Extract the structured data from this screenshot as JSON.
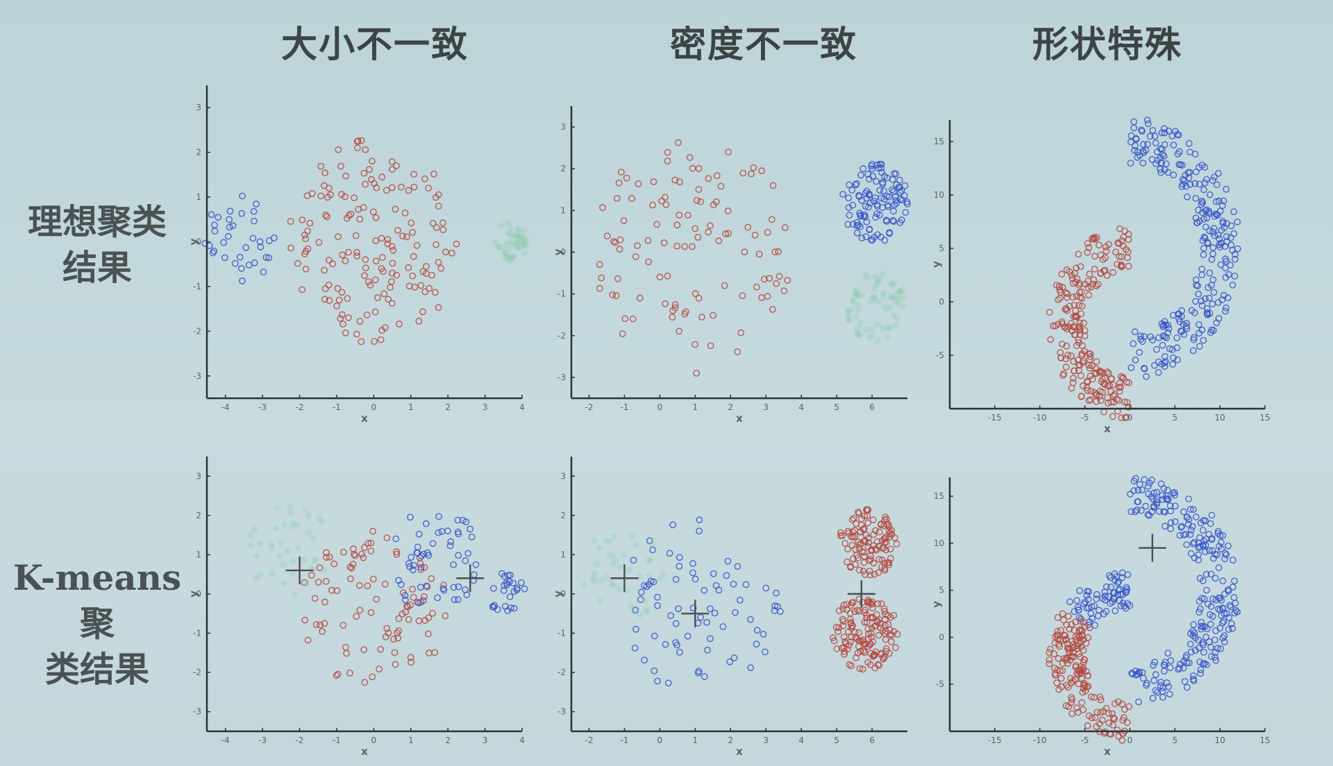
{
  "titles": {
    "col1": "大小不一致",
    "col2": "密度不一致",
    "col3": "形状特殊",
    "row1_line1": "理想聚类",
    "row1_line2": "结果",
    "row2_line1": "K-means聚",
    "row2_line2": "类结果"
  },
  "colors": {
    "red": "#b4463e",
    "blue": "#3552c8",
    "green": "#7cc9a4",
    "axis": "#2c3234"
  },
  "chart_data": [
    {
      "id": "size-ideal",
      "type": "scatter",
      "xlabel": "x",
      "ylabel": "y",
      "xlim": [
        -4.5,
        4
      ],
      "ylim": [
        -3.5,
        3.5
      ],
      "xticks": [
        -4,
        -3,
        -2,
        -1,
        0,
        1,
        2,
        3,
        4
      ],
      "yticks": [
        -3,
        -2,
        -1,
        0,
        1,
        2,
        3
      ],
      "series": [
        {
          "color": "red",
          "shape": "disk",
          "center": [
            0,
            0
          ],
          "radius": 2.3,
          "count": 160,
          "seed": 11
        },
        {
          "color": "blue",
          "shape": "disk",
          "center": [
            -3.6,
            0
          ],
          "radius": 1.05,
          "count": 35,
          "seed": 12
        },
        {
          "color": "green",
          "shape": "disk",
          "center": [
            3.7,
            0
          ],
          "radius": 0.45,
          "count": 45,
          "seed": 13,
          "faint": true
        }
      ]
    },
    {
      "id": "density-ideal",
      "type": "scatter",
      "xlabel": "x",
      "ylabel": "y",
      "xlim": [
        -2.5,
        7
      ],
      "ylim": [
        -3.5,
        3.5
      ],
      "xticks": [
        -2,
        -1,
        0,
        1,
        2,
        3,
        4,
        5,
        6
      ],
      "yticks": [
        -3,
        -2,
        -1,
        0,
        1,
        2,
        3
      ],
      "series": [
        {
          "color": "red",
          "shape": "disk",
          "center": [
            1,
            0
          ],
          "radius": 2.9,
          "count": 110,
          "seed": 21
        },
        {
          "color": "blue",
          "shape": "disk",
          "center": [
            6.1,
            1.2
          ],
          "radius": 0.95,
          "count": 110,
          "seed": 22
        },
        {
          "color": "green",
          "shape": "disk",
          "center": [
            6.1,
            -1.3
          ],
          "radius": 0.85,
          "count": 70,
          "seed": 23,
          "faint": true
        }
      ]
    },
    {
      "id": "shape-ideal",
      "type": "scatter",
      "xlabel": "x",
      "ylabel": "y",
      "xlim": [
        -20,
        15
      ],
      "ylim": [
        -10,
        17
      ],
      "xticks": [
        -15,
        -10,
        -5,
        0,
        5,
        10,
        15
      ],
      "yticks": [
        -5,
        0,
        5,
        10,
        15
      ],
      "series": [
        {
          "color": "blue",
          "shape": "arc",
          "center": [
            0,
            5
          ],
          "radius": 10,
          "width": 2.2,
          "from": -90,
          "to": 90,
          "count": 260,
          "seed": 31
        },
        {
          "color": "red",
          "shape": "arc",
          "center": [
            0,
            -2
          ],
          "radius": 7,
          "width": 2.0,
          "from": 90,
          "to": 270,
          "count": 230,
          "seed": 32
        }
      ]
    },
    {
      "id": "size-kmeans",
      "type": "scatter",
      "xlabel": "x",
      "ylabel": "y",
      "xlim": [
        -4.5,
        4
      ],
      "ylim": [
        -3.5,
        3.5
      ],
      "xticks": [
        -4,
        -3,
        -2,
        -1,
        0,
        1,
        2,
        3,
        4
      ],
      "yticks": [
        -3,
        -2,
        -1,
        0,
        1,
        2,
        3
      ],
      "series": [
        {
          "color": "red",
          "shape": "disk",
          "center": [
            0,
            -0.4
          ],
          "radius": 2.0,
          "count": 95,
          "seed": 41
        },
        {
          "color": "blue",
          "shape": "disk",
          "center": [
            1.6,
            0.9
          ],
          "radius": 1.3,
          "count": 55,
          "seed": 42
        },
        {
          "color": "blue",
          "shape": "disk",
          "center": [
            3.6,
            0
          ],
          "radius": 0.55,
          "count": 25,
          "seed": 43
        },
        {
          "color": "green",
          "shape": "disk",
          "center": [
            -2.2,
            1.1
          ],
          "radius": 1.2,
          "count": 40,
          "seed": 44,
          "faint": true
        }
      ],
      "centroids": [
        [
          -2,
          0.6
        ],
        [
          2.6,
          0.4
        ]
      ]
    },
    {
      "id": "density-kmeans",
      "type": "scatter",
      "xlabel": "x",
      "ylabel": "y",
      "xlim": [
        -2.5,
        7
      ],
      "ylim": [
        -3.5,
        3.5
      ],
      "xticks": [
        -2,
        -1,
        0,
        1,
        2,
        3,
        4,
        5,
        6
      ],
      "yticks": [
        -3,
        -2,
        -1,
        0,
        1,
        2,
        3
      ],
      "series": [
        {
          "color": "blue",
          "shape": "disk",
          "center": [
            1.2,
            -0.3
          ],
          "radius": 2.3,
          "count": 75,
          "seed": 51
        },
        {
          "color": "red",
          "shape": "disk",
          "center": [
            5.9,
            1.3
          ],
          "radius": 0.85,
          "count": 110,
          "seed": 52
        },
        {
          "color": "red",
          "shape": "disk",
          "center": [
            5.8,
            -1.0
          ],
          "radius": 0.95,
          "count": 140,
          "seed": 53
        },
        {
          "color": "green",
          "shape": "disk",
          "center": [
            -1,
            0.5
          ],
          "radius": 1.2,
          "count": 40,
          "seed": 54,
          "faint": true
        }
      ],
      "centroids": [
        [
          -1,
          0.4
        ],
        [
          1,
          -0.5
        ],
        [
          5.7,
          0
        ]
      ]
    },
    {
      "id": "shape-kmeans",
      "type": "scatter",
      "xlabel": "x",
      "ylabel": "y",
      "xlim": [
        -20,
        15
      ],
      "ylim": [
        -10,
        17
      ],
      "xticks": [
        -15,
        -10,
        -5,
        0,
        5,
        10,
        15
      ],
      "yticks": [
        -5,
        0,
        5,
        10,
        15
      ],
      "series": [
        {
          "color": "blue",
          "shape": "arc",
          "center": [
            0,
            5
          ],
          "radius": 10,
          "width": 2.2,
          "from": -90,
          "to": 90,
          "count": 250,
          "seed": 61
        },
        {
          "color": "blue",
          "shape": "arc",
          "center": [
            0,
            -2
          ],
          "radius": 7,
          "width": 2.0,
          "from": 90,
          "to": 145,
          "count": 70,
          "seed": 62
        },
        {
          "color": "red",
          "shape": "arc",
          "center": [
            0,
            -2
          ],
          "radius": 7,
          "width": 2.0,
          "from": 145,
          "to": 270,
          "count": 170,
          "seed": 63
        }
      ],
      "centroids": [
        [
          2.5,
          9.5
        ]
      ]
    }
  ]
}
